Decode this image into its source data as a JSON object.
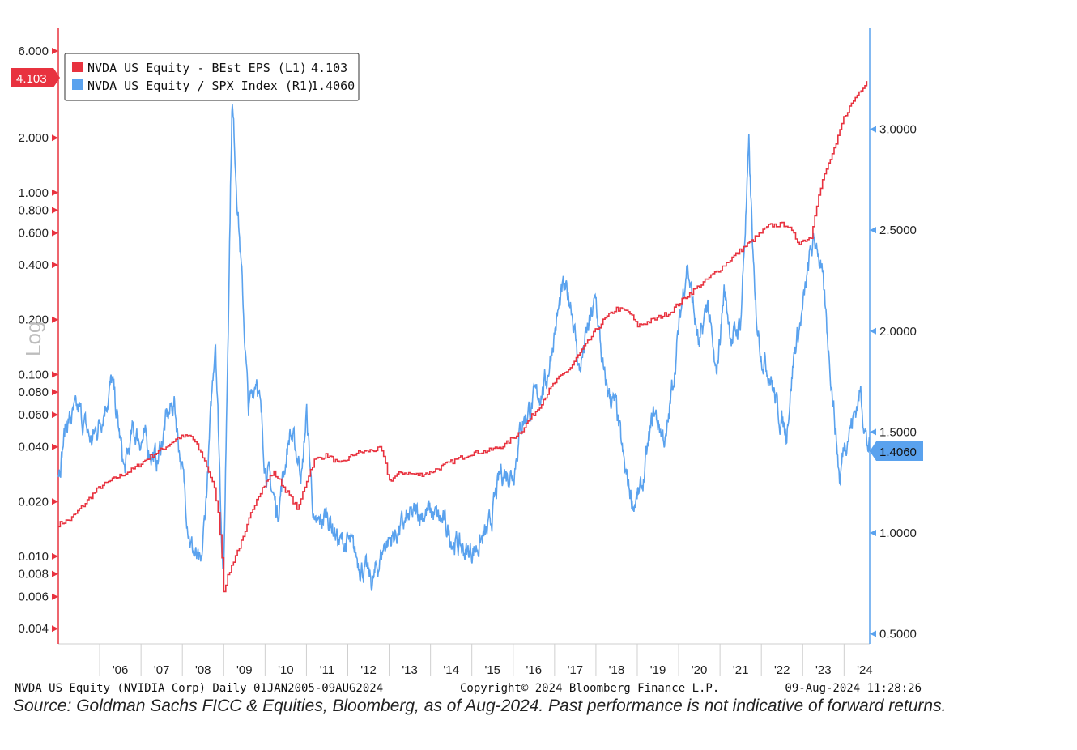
{
  "colors": {
    "eps": "#e8323f",
    "ratio": "#5aa2ee",
    "left_axis": "#e8323f",
    "right_axis": "#5aa2ee",
    "badge_left": "#e8323f",
    "badge_right": "#5aa2ee"
  },
  "chart_data": {
    "type": "line",
    "title": "",
    "ylabel_left": "Log",
    "x_tick_labels": [
      "'06",
      "'07",
      "'08",
      "'09",
      "'10",
      "'11",
      "'12",
      "'13",
      "'14",
      "'15",
      "'16",
      "'17",
      "'18",
      "'19",
      "'20",
      "'21",
      "'22",
      "'23",
      "'24"
    ],
    "x_range": [
      2005.0,
      2024.62
    ],
    "y_left": {
      "scale": "log",
      "range": [
        0.0033,
        8.0
      ],
      "ticks": [
        6.0,
        2.0,
        1.0,
        0.8,
        0.6,
        0.4,
        0.2,
        0.1,
        0.08,
        0.06,
        0.04,
        0.02,
        0.01,
        0.008,
        0.006,
        0.004
      ],
      "tick_labels": [
        "6.000",
        "2.000",
        "1.000",
        "0.800",
        "0.600",
        "0.400",
        "0.200",
        "0.100",
        "0.080",
        "0.060",
        "0.040",
        "0.020",
        "0.010",
        "0.008",
        "0.006",
        "0.004"
      ]
    },
    "y_right": {
      "scale": "linear",
      "range": [
        0.45,
        3.5
      ],
      "ticks": [
        3.0,
        2.5,
        2.0,
        1.5,
        1.0,
        0.5
      ],
      "tick_labels": [
        "3.0000",
        "2.5000",
        "2.0000",
        "1.5000",
        "1.0000",
        "0.5000"
      ]
    },
    "legend": {
      "position": "top-left",
      "entries": [
        {
          "label": "NVDA US Equity - BEst EPS (L1)",
          "value": "4.103"
        },
        {
          "label": "NVDA US Equity / SPX Index (R1)",
          "value": "1.4060"
        }
      ]
    },
    "last_values": {
      "left": "4.103",
      "right": "1.4060"
    },
    "series": [
      {
        "name": "NVDA US Equity - BEst EPS (L1)",
        "axis": "left",
        "x": [
          2005.0,
          2005.3,
          2005.6,
          2006.0,
          2006.4,
          2006.8,
          2007.2,
          2007.6,
          2007.9,
          2008.2,
          2008.5,
          2008.8,
          2009.0,
          2009.2,
          2009.5,
          2009.8,
          2010.2,
          2010.5,
          2010.8,
          2011.2,
          2011.5,
          2011.8,
          2012.2,
          2012.5,
          2012.8,
          2013.0,
          2013.3,
          2013.7,
          2014.0,
          2014.5,
          2015.0,
          2015.4,
          2015.8,
          2016.2,
          2016.6,
          2017.0,
          2017.4,
          2017.8,
          2018.2,
          2018.5,
          2018.8,
          2019.0,
          2019.4,
          2019.8,
          2020.2,
          2020.6,
          2021.0,
          2021.4,
          2021.8,
          2022.2,
          2022.6,
          2022.9,
          2023.2,
          2023.5,
          2023.8,
          2024.0,
          2024.3,
          2024.55
        ],
        "values": [
          0.015,
          0.016,
          0.019,
          0.024,
          0.027,
          0.03,
          0.035,
          0.04,
          0.045,
          0.046,
          0.035,
          0.022,
          0.0065,
          0.009,
          0.013,
          0.021,
          0.029,
          0.023,
          0.018,
          0.034,
          0.036,
          0.032,
          0.037,
          0.038,
          0.039,
          0.026,
          0.029,
          0.028,
          0.029,
          0.033,
          0.037,
          0.038,
          0.041,
          0.049,
          0.065,
          0.09,
          0.11,
          0.15,
          0.2,
          0.23,
          0.22,
          0.185,
          0.2,
          0.22,
          0.27,
          0.32,
          0.38,
          0.46,
          0.55,
          0.66,
          0.67,
          0.53,
          0.57,
          1.2,
          1.8,
          2.6,
          3.4,
          4.103
        ]
      },
      {
        "name": "NVDA US Equity / SPX Index (R1)",
        "axis": "right",
        "x": [
          2005.0,
          2005.2,
          2005.5,
          2005.8,
          2006.0,
          2006.3,
          2006.6,
          2006.8,
          2007.1,
          2007.4,
          2007.6,
          2007.8,
          2008.0,
          2008.2,
          2008.45,
          2008.6,
          2008.8,
          2008.95,
          2009.0,
          2009.2,
          2009.4,
          2009.6,
          2009.8,
          2010.0,
          2010.3,
          2010.6,
          2010.9,
          2011.0,
          2011.2,
          2011.5,
          2011.8,
          2012.0,
          2012.3,
          2012.6,
          2012.9,
          2013.1,
          2013.4,
          2013.7,
          2014.0,
          2014.3,
          2014.6,
          2014.9,
          2015.1,
          2015.4,
          2015.7,
          2016.0,
          2016.2,
          2016.5,
          2016.8,
          2017.0,
          2017.2,
          2017.4,
          2017.6,
          2017.8,
          2018.0,
          2018.2,
          2018.5,
          2018.7,
          2018.9,
          2019.1,
          2019.4,
          2019.7,
          2020.0,
          2020.2,
          2020.5,
          2020.7,
          2020.9,
          2021.1,
          2021.3,
          2021.5,
          2021.7,
          2021.85,
          2022.0,
          2022.2,
          2022.4,
          2022.6,
          2022.8,
          2023.0,
          2023.2,
          2023.35,
          2023.5,
          2023.7,
          2023.9,
          2024.0,
          2024.2,
          2024.4,
          2024.55,
          2024.62
        ],
        "values": [
          1.3,
          1.55,
          1.6,
          1.45,
          1.55,
          1.75,
          1.3,
          1.5,
          1.45,
          1.35,
          1.55,
          1.65,
          1.3,
          0.95,
          0.8,
          1.25,
          2.0,
          1.0,
          0.78,
          3.15,
          2.4,
          1.6,
          1.8,
          1.35,
          1.1,
          1.5,
          1.3,
          1.6,
          1.0,
          1.1,
          0.95,
          0.95,
          0.85,
          0.75,
          0.95,
          0.98,
          1.05,
          1.1,
          1.1,
          1.05,
          0.95,
          0.9,
          0.93,
          1.0,
          1.3,
          1.3,
          1.55,
          1.65,
          1.75,
          2.0,
          2.2,
          2.15,
          1.8,
          2.0,
          2.15,
          1.75,
          1.6,
          1.3,
          1.15,
          1.2,
          1.6,
          1.45,
          2.0,
          2.35,
          1.9,
          2.15,
          1.75,
          2.2,
          1.95,
          2.05,
          2.9,
          2.1,
          1.9,
          1.8,
          1.6,
          1.5,
          1.9,
          2.1,
          2.4,
          2.45,
          2.2,
          1.75,
          1.25,
          1.45,
          1.55,
          1.7,
          1.45,
          1.406
        ]
      }
    ]
  },
  "footer": {
    "left": "NVDA US Equity (NVIDIA Corp)  Daily 01JAN2005-09AUG2024",
    "center": "Copyright© 2024 Bloomberg Finance L.P.",
    "right": "09-Aug-2024 11:28:26"
  },
  "source_note": "Source: Goldman Sachs FICC & Equities, Bloomberg, as of Aug-2024.  Past performance is not indicative of forward returns."
}
